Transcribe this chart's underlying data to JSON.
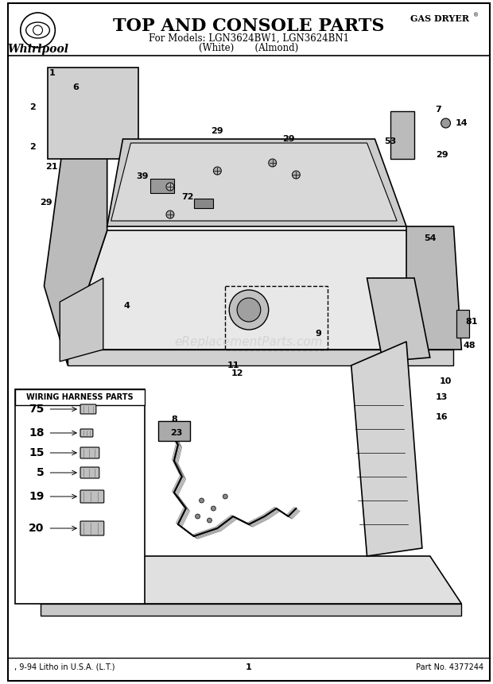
{
  "title": "TOP AND CONSOLE PARTS",
  "subtitle1": "For Models: LGN3624BW1, LGN3624BN1",
  "subtitle2": "(White)       (Almond)",
  "top_right_label": "GAS DRYER",
  "bottom_left": ", 9-94 Litho in U.S.A. (L.T.)",
  "bottom_center": "1",
  "bottom_right": "Part No. 4377244",
  "bg_color": "#ffffff",
  "border_color": "#000000",
  "wiring_box_title": "WIRING HARNESS PARTS",
  "watermark": "eReplacementParts.com"
}
